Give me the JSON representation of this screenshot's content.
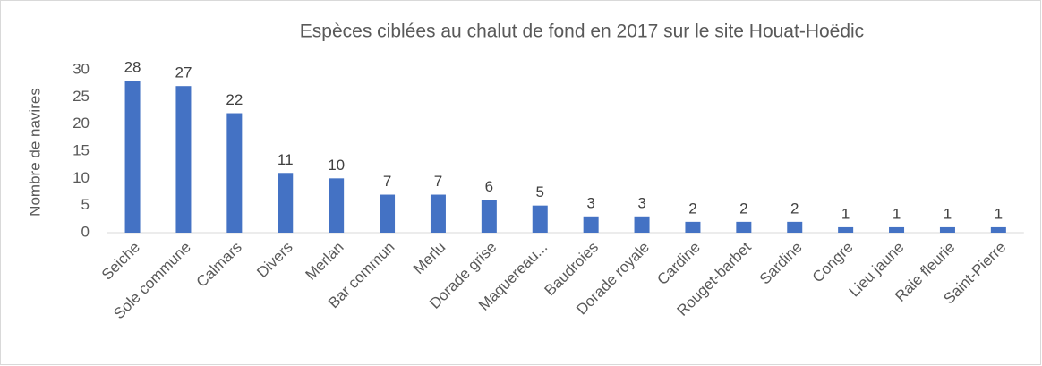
{
  "chart_data": {
    "type": "bar",
    "title": "Espèces ciblées au chalut de fond en 2017 sur le site Houat-Hoëdic",
    "y_label": "Nombre de navires",
    "categories": [
      "Seiche",
      "Sole commune",
      "Calmars",
      "Divers",
      "Merlan",
      "Bar commun",
      "Merlu",
      "Dorade grise",
      "Maquereau...",
      "Baudroies",
      "Dorade royale",
      "Cardine",
      "Rouget-barbet",
      "Sardine",
      "Congre",
      "Lieu jaune",
      "Raie fleurie",
      "Saint-Pierre"
    ],
    "values": [
      28,
      27,
      22,
      11,
      10,
      7,
      7,
      6,
      5,
      3,
      3,
      2,
      2,
      2,
      1,
      1,
      1,
      1
    ],
    "color": "#4472c4",
    "ylim": [
      0,
      30
    ],
    "yticks": [
      0,
      5,
      10,
      15,
      20,
      25,
      30
    ],
    "grid": false
  }
}
